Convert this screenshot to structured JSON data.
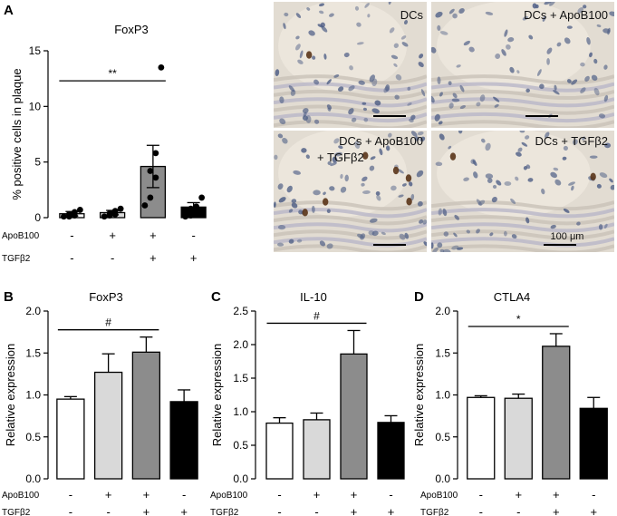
{
  "panels": {
    "A": "A",
    "B": "B",
    "C": "C",
    "D": "D"
  },
  "colors": {
    "ctrl": "#ffffff",
    "apob": "#d9d9d9",
    "combo": "#8c8c8c",
    "tgfb": "#000000",
    "stroke": "#000000",
    "tissue_bg": "#e2dcd2",
    "nuclei": "#4f5f86",
    "foxp3_stain": "#5a3418"
  },
  "treatment_rows": {
    "apob_label": "ApoB100",
    "tgfb_label": "TGFβ2",
    "apob_signs": [
      "-",
      "+",
      "+",
      "-"
    ],
    "tgfb_signs": [
      "-",
      "-",
      "+",
      "+"
    ]
  },
  "micrographs": {
    "tl_label": "DCs",
    "tr_label": "DCs + ApoB100",
    "bl_label_line1": "DCs + ApoB100",
    "bl_label_line2": "+ TGFβ2",
    "br_label": "DCs + TGFβ2",
    "scale_label": "100 μm"
  },
  "chart_data": [
    {
      "panel": "A",
      "type": "bar",
      "title": "FoxP3",
      "ylabel": "% positive cells in plaque",
      "ylim": [
        0,
        15
      ],
      "yticks": [
        0,
        5,
        10,
        15
      ],
      "categories": [
        "DCs",
        "DCs + ApoB100",
        "DCs + ApoB100 + TGFβ2",
        "DCs + TGFβ2"
      ],
      "values": [
        0.35,
        0.45,
        4.6,
        0.95
      ],
      "errors": [
        0.2,
        0.2,
        1.9,
        0.4
      ],
      "points": [
        [
          0.1,
          0.1,
          0.2,
          0.3,
          0.5,
          0.7
        ],
        [
          0.1,
          0.2,
          0.3,
          0.4,
          0.6,
          0.8
        ],
        [
          1.1,
          1.8,
          3.6,
          4.2,
          5.8,
          13.5
        ],
        [
          0.1,
          0.2,
          0.4,
          0.8,
          1.0,
          1.8
        ]
      ],
      "significance": {
        "between": [
          0,
          2
        ],
        "label": "**"
      }
    },
    {
      "panel": "B",
      "type": "bar",
      "title": "FoxP3",
      "ylabel": "Relative expression",
      "ylim": [
        0,
        2.0
      ],
      "yticks": [
        "0.0",
        "0.5",
        "1.0",
        "1.5",
        "2.0"
      ],
      "categories": [
        "DCs",
        "DCs + ApoB100",
        "DCs + ApoB100 + TGFβ2",
        "DCs + TGFβ2"
      ],
      "values": [
        0.95,
        1.27,
        1.51,
        0.92
      ],
      "errors": [
        0.03,
        0.22,
        0.18,
        0.14
      ],
      "significance": {
        "between": [
          0,
          2
        ],
        "label": "#"
      }
    },
    {
      "panel": "C",
      "type": "bar",
      "title": "IL-10",
      "ylabel": "Relative expression",
      "ylim": [
        0,
        2.5
      ],
      "yticks": [
        "0.0",
        "0.5",
        "1.0",
        "1.5",
        "2.0",
        "2.5"
      ],
      "categories": [
        "DCs",
        "DCs + ApoB100",
        "DCs + ApoB100 + TGFβ2",
        "DCs + TGFβ2"
      ],
      "values": [
        0.83,
        0.88,
        1.86,
        0.84
      ],
      "errors": [
        0.08,
        0.1,
        0.35,
        0.1
      ],
      "significance": {
        "between": [
          0,
          2
        ],
        "label": "#"
      }
    },
    {
      "panel": "D",
      "type": "bar",
      "title": "CTLA4",
      "ylabel": "Relative expression",
      "ylim": [
        0,
        2.0
      ],
      "yticks": [
        "0.0",
        "0.5",
        "1.0",
        "1.5",
        "2.0"
      ],
      "categories": [
        "DCs",
        "DCs + ApoB100",
        "DCs + ApoB100 + TGFβ2",
        "DCs + TGFβ2"
      ],
      "values": [
        0.97,
        0.96,
        1.58,
        0.84
      ],
      "errors": [
        0.02,
        0.05,
        0.15,
        0.13
      ],
      "significance": {
        "between": [
          0,
          2
        ],
        "label": "*"
      }
    }
  ]
}
